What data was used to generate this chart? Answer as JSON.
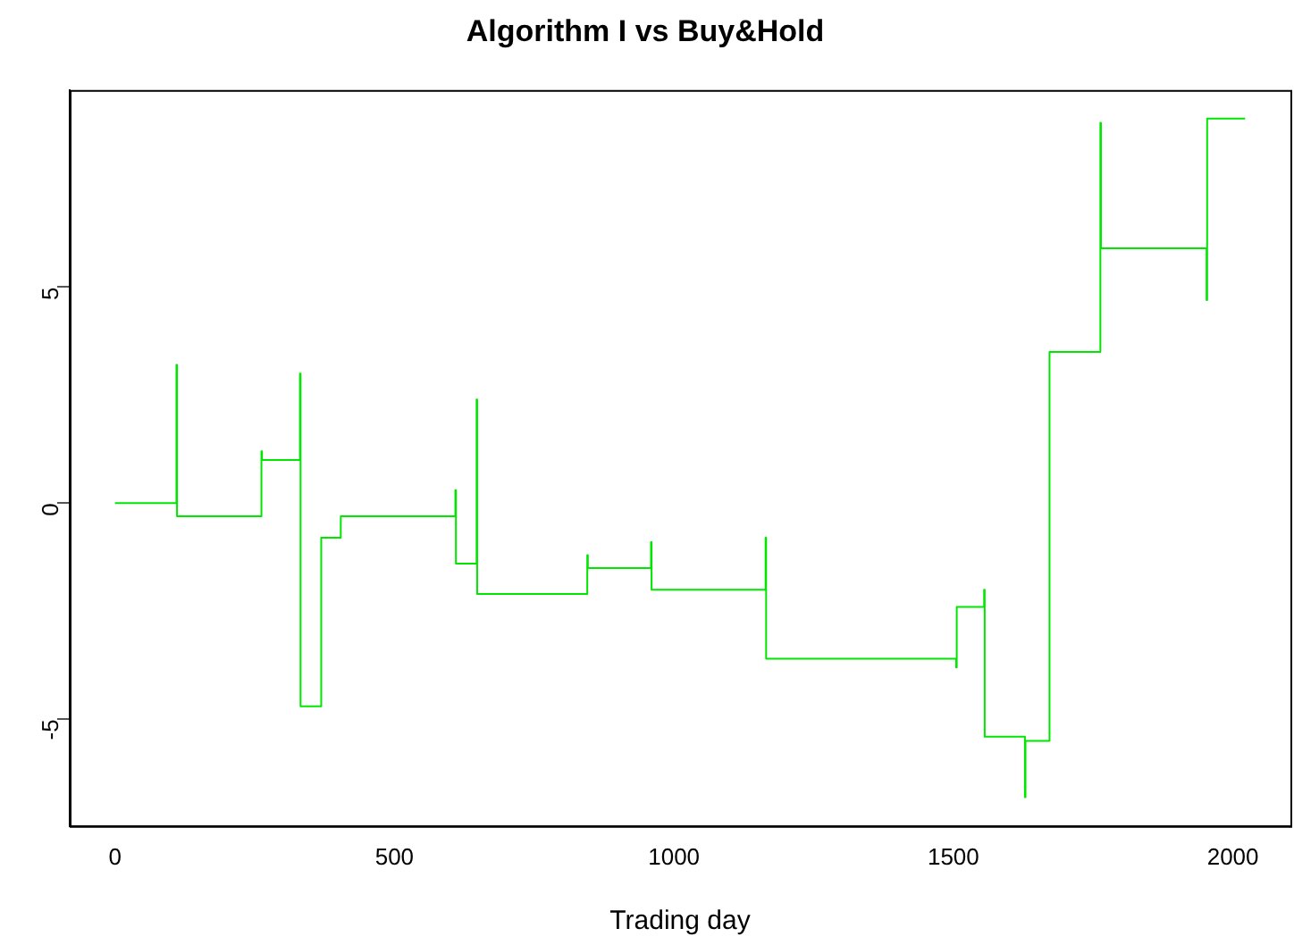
{
  "chart_data": {
    "type": "step",
    "title": "Algorithm I vs Buy&Hold",
    "xlabel": "Trading day",
    "x": [
      0,
      110,
      111,
      262,
      263,
      331,
      332,
      369,
      404,
      609,
      610,
      647,
      648,
      845,
      846,
      959,
      960,
      1164,
      1165,
      1505,
      1506,
      1555,
      1556,
      1628,
      1629,
      1672,
      1763,
      1764,
      1953,
      1954,
      2022
    ],
    "values": [
      0,
      3.2,
      -0.3,
      1.2,
      1.0,
      3.0,
      -4.7,
      -0.8,
      -0.3,
      0.3,
      -1.4,
      2.4,
      -2.1,
      -1.2,
      -1.5,
      -0.9,
      -2.0,
      -0.8,
      -3.6,
      -3.8,
      -2.4,
      -2.0,
      -5.4,
      -6.8,
      -5.5,
      3.5,
      8.8,
      5.9,
      4.7,
      8.9,
      8.9
    ],
    "color": "#00e600",
    "marker": "none",
    "xlim": [
      -81,
      2103
    ],
    "ylim": [
      -7.47,
      9.56
    ],
    "xticks": [
      0,
      500,
      1000,
      1500,
      2000
    ],
    "yticks": [
      -5,
      0,
      5
    ]
  }
}
